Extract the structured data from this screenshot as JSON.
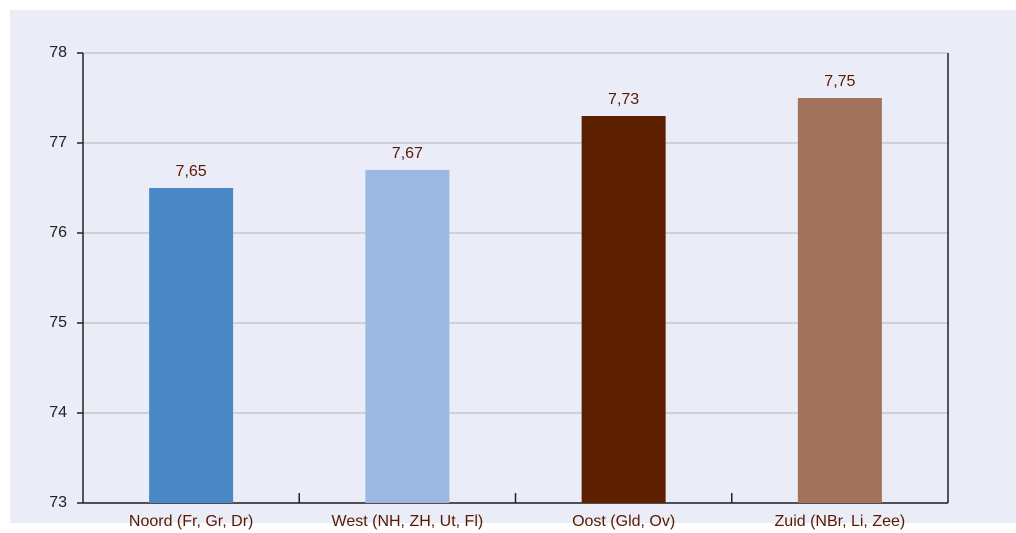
{
  "chart_data": {
    "type": "bar",
    "categories": [
      "Noord (Fr, Gr, Dr)",
      "West (NH, ZH, Ut, Fl)",
      "Oost (Gld, Ov)",
      "Zuid (NBr, Li, Zee)"
    ],
    "values": [
      76.5,
      76.7,
      77.3,
      77.5
    ],
    "value_labels": [
      "7,65",
      "7,67",
      "7,73",
      "7,75"
    ],
    "colors": [
      "#4a88c8",
      "#9ab8e0",
      "#5c1f00",
      "#a0735a"
    ],
    "ylim": [
      73,
      78
    ],
    "yticks": [
      73,
      74,
      75,
      76,
      77,
      78
    ],
    "grid": true
  }
}
